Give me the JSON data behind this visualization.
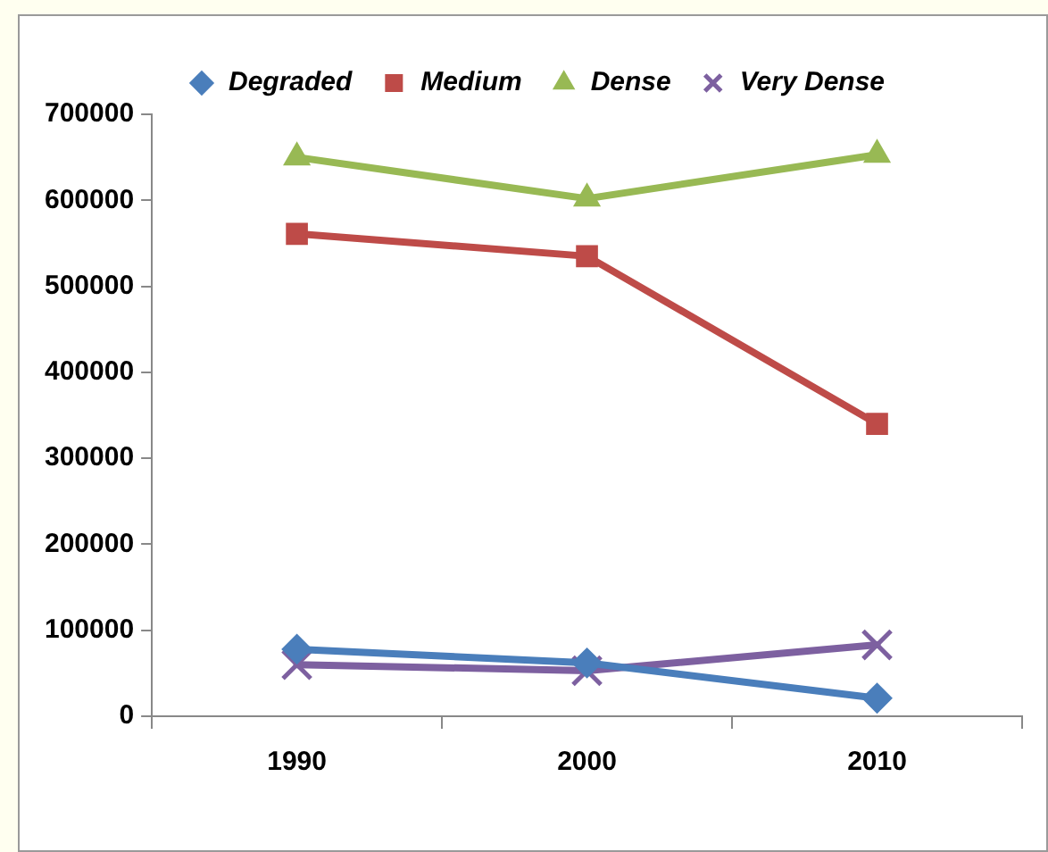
{
  "chart_data": {
    "type": "line",
    "categories": [
      "1990",
      "2000",
      "2010"
    ],
    "series": [
      {
        "name": "Degraded",
        "color": "#4a7ebb",
        "marker": "diamond",
        "values": [
          78000,
          62000,
          21000
        ]
      },
      {
        "name": "Medium",
        "color": "#be4b48",
        "marker": "square",
        "values": [
          561000,
          535000,
          340000
        ]
      },
      {
        "name": "Dense",
        "color": "#98b954",
        "marker": "triangle",
        "values": [
          650000,
          602000,
          653000
        ]
      },
      {
        "name": "Very Dense",
        "color": "#7d60a0",
        "marker": "cross",
        "values": [
          60000,
          53000,
          83000
        ]
      }
    ],
    "ylim": [
      0,
      700000
    ],
    "yticks": [
      0,
      100000,
      200000,
      300000,
      400000,
      500000,
      600000,
      700000
    ],
    "grid": false,
    "legend": "top",
    "line_style": "solid"
  }
}
